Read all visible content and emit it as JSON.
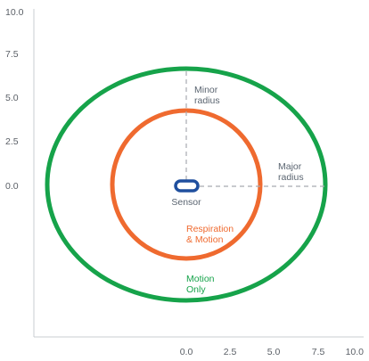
{
  "colors": {
    "axis": "#c9ccd1",
    "tick_text": "#5a5f66",
    "dashed": "#a8abb0",
    "sensor": "#1f4f9e",
    "annotation_gray": "#5a6470",
    "inner_ring": "#ef6a2f",
    "outer_ring": "#16a34a"
  },
  "axes": {
    "y_ticks": [
      "10.0",
      "7.5",
      "5.0",
      "2.5",
      "0.0"
    ],
    "x_ticks": [
      "0.0",
      "2.5",
      "5.0",
      "7.5",
      "10.0"
    ]
  },
  "labels": {
    "minor_radius_line1": "Minor",
    "minor_radius_line2": "radius",
    "major_radius_line1": "Major",
    "major_radius_line2": "radius",
    "sensor": "Sensor",
    "inner_zone_line1": "Respiration",
    "inner_zone_line2": "& Motion",
    "outer_zone_line1": "Motion",
    "outer_zone_line2": "Only"
  },
  "icons": {
    "sensor": "sensor-pill-icon"
  }
}
